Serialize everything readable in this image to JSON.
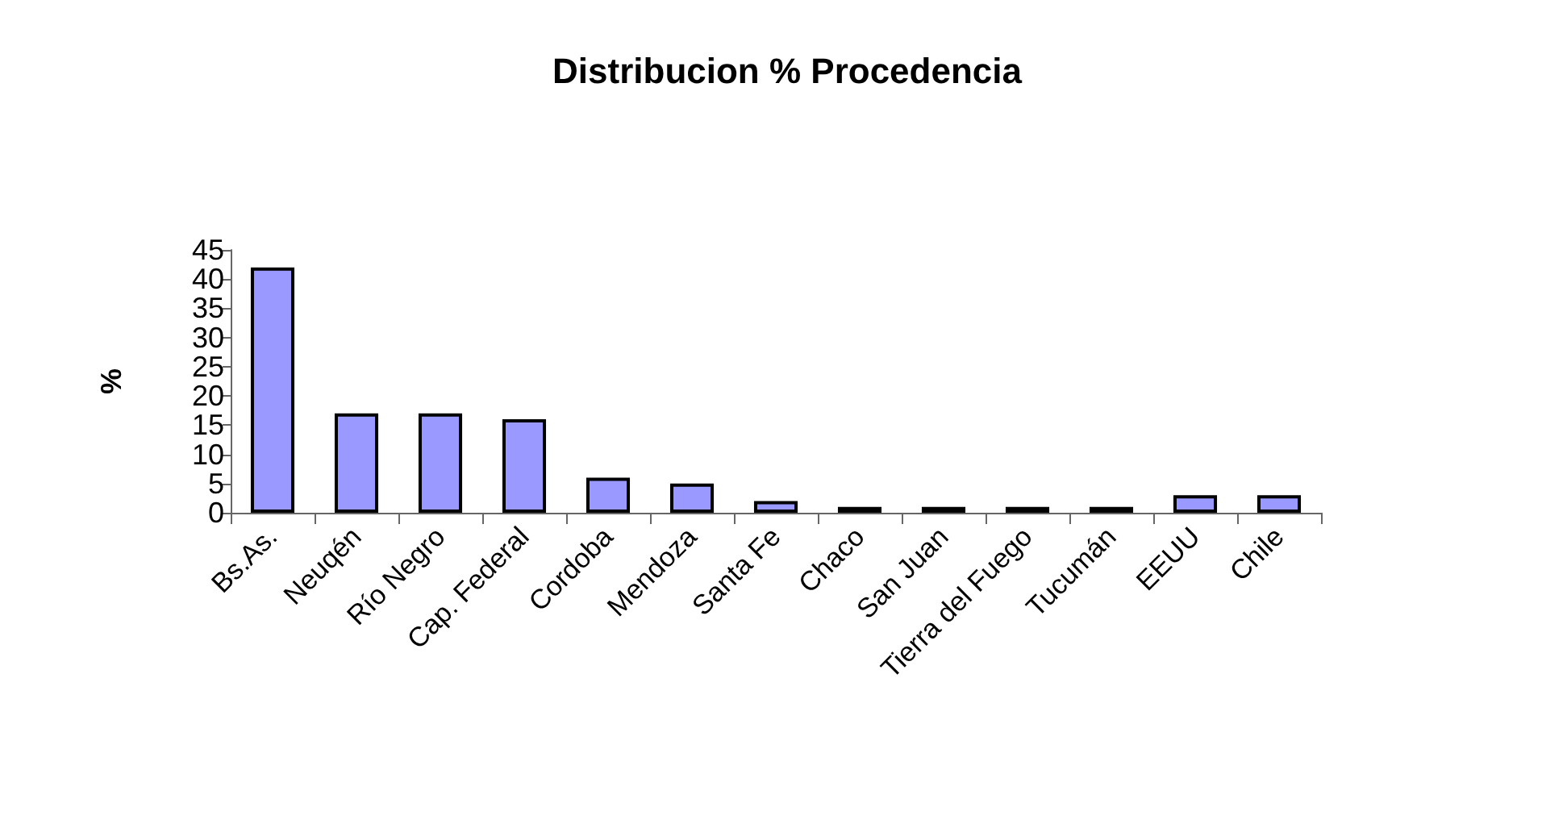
{
  "chart_data": {
    "type": "bar",
    "title": "Distribucion % Procedencia",
    "ylabel": "%",
    "categories": [
      "Bs.As.",
      "Neuqén",
      "Río Negro",
      "Cap. Federal",
      "Cordoba",
      "Mendoza",
      "Santa Fe",
      "Chaco",
      "San Juan",
      "Tierra del Fuego",
      "Tucumán",
      "EEUU",
      "Chile"
    ],
    "values": [
      42,
      17,
      17,
      16,
      6,
      5,
      2,
      1,
      1,
      1,
      1,
      3,
      3
    ],
    "color": "#9999ff",
    "ylim": [
      0,
      45
    ],
    "yticks": [
      0,
      5,
      10,
      15,
      20,
      25,
      30,
      35,
      40,
      45
    ],
    "grid": false
  }
}
